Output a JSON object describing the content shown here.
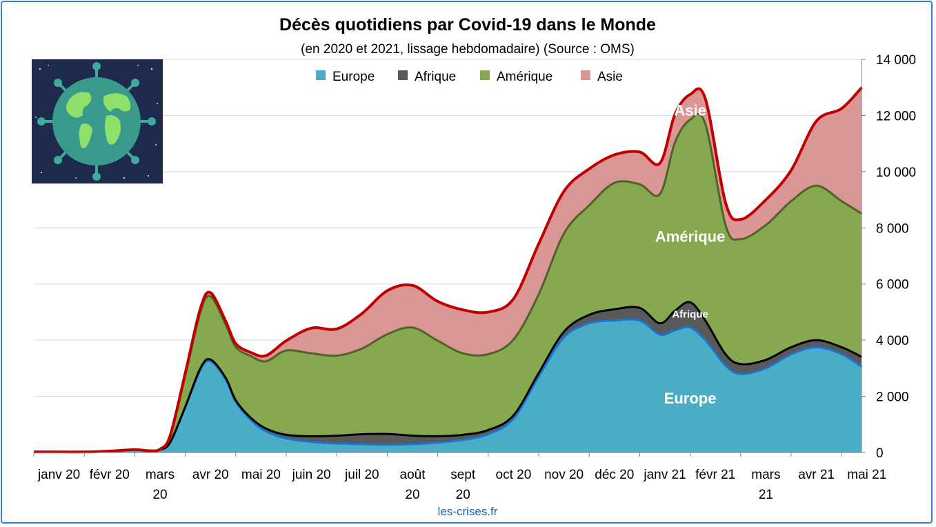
{
  "chart_data": {
    "type": "area",
    "stacked": true,
    "title": "Décès quotidiens par Covid-19 dans le Monde",
    "subtitle": "(en 2020 et 2021, lissage hebdomadaire) (Source : OMS)",
    "source_credit": "les-crises.fr",
    "ylim": [
      0,
      14000
    ],
    "y_axis_position": "right",
    "y_ticks": [
      0,
      2000,
      4000,
      6000,
      8000,
      10000,
      12000,
      14000
    ],
    "y_tick_labels": [
      "0",
      "2 000",
      "4 000",
      "6 000",
      "8 000",
      "10 000",
      "12 000",
      "14 000"
    ],
    "grid": true,
    "legend_position": "top",
    "months": [
      [
        "janv 20"
      ],
      [
        "févr 20"
      ],
      [
        "mars",
        "20"
      ],
      [
        "avr 20"
      ],
      [
        "mai 20"
      ],
      [
        "juin 20"
      ],
      [
        "juil 20"
      ],
      [
        "août",
        "20"
      ],
      [
        "sept",
        "20"
      ],
      [
        "oct 20"
      ],
      [
        "nov 20"
      ],
      [
        "déc 20"
      ],
      [
        "janv 21"
      ],
      [
        "févr 21"
      ],
      [
        "mars",
        "21"
      ],
      [
        "avr 21"
      ],
      [
        "mai 21"
      ]
    ],
    "x": [
      0,
      0.5,
      1,
      1.5,
      2,
      2.3,
      2.5,
      2.7,
      3,
      3.3,
      3.5,
      3.8,
      4,
      4.3,
      4.6,
      5,
      5.5,
      6,
      6.5,
      7,
      7.5,
      8,
      8.5,
      9,
      9.5,
      10,
      10.5,
      11,
      11.5,
      12,
      12.4,
      12.7,
      13,
      13.3,
      13.7,
      14,
      14.5,
      15,
      15.5,
      16,
      16.4
    ],
    "series": [
      {
        "name": "Europe",
        "color": "#4bacc6",
        "line": "#1a74d0",
        "values": [
          20,
          20,
          20,
          50,
          100,
          60,
          100,
          350,
          1600,
          2950,
          3250,
          2600,
          1800,
          1150,
          750,
          500,
          380,
          320,
          300,
          280,
          300,
          350,
          450,
          650,
          1200,
          2700,
          4100,
          4600,
          4700,
          4700,
          4200,
          4350,
          4450,
          4000,
          3100,
          2800,
          3000,
          3500,
          3750,
          3500,
          3050
        ]
      },
      {
        "name": "Afrique",
        "color": "#595959",
        "line": "#000000",
        "values": [
          0,
          0,
          0,
          0,
          0,
          0,
          0,
          10,
          30,
          50,
          60,
          60,
          60,
          80,
          100,
          130,
          200,
          280,
          350,
          380,
          300,
          230,
          180,
          150,
          120,
          130,
          200,
          300,
          400,
          450,
          400,
          700,
          900,
          700,
          400,
          350,
          300,
          250,
          250,
          250,
          350
        ]
      },
      {
        "name": "Amérique",
        "color": "#86a84f",
        "line": "#4f6228",
        "values": [
          0,
          0,
          0,
          0,
          0,
          0,
          10,
          200,
          1100,
          2000,
          2250,
          1900,
          1900,
          2200,
          2400,
          3000,
          2950,
          2850,
          3050,
          3550,
          3850,
          3400,
          2900,
          2700,
          2700,
          2800,
          3500,
          3900,
          4500,
          4400,
          4600,
          6000,
          6500,
          7000,
          4600,
          4450,
          4800,
          5200,
          5500,
          5200,
          5100
        ]
      },
      {
        "name": "Asie",
        "color": "#da9694",
        "line": "#c00000",
        "values": [
          0,
          0,
          0,
          0,
          0,
          0,
          10,
          40,
          100,
          130,
          130,
          120,
          120,
          130,
          200,
          350,
          900,
          950,
          1250,
          1550,
          1500,
          1400,
          1550,
          1500,
          1450,
          1800,
          1500,
          1300,
          1000,
          1150,
          1100,
          1000,
          900,
          900,
          800,
          700,
          900,
          1100,
          2300,
          3300,
          4500
        ]
      }
    ],
    "annotations": [
      {
        "text": "Asie",
        "x": 13.0,
        "y": 12000,
        "size": 22
      },
      {
        "text": "Amérique",
        "x": 13.0,
        "y": 7500,
        "size": 22
      },
      {
        "text": "Afrique",
        "x": 13.0,
        "y": 4800,
        "size": 15
      },
      {
        "text": "Europe",
        "x": 13.0,
        "y": 1750,
        "size": 22
      }
    ]
  }
}
